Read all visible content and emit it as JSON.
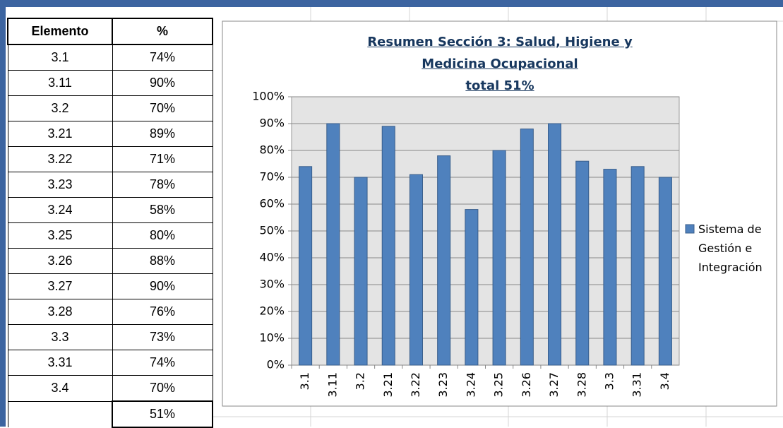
{
  "table": {
    "header": [
      "Elemento",
      "%"
    ],
    "rows": [
      [
        "3.1",
        "74%"
      ],
      [
        "3.11",
        "90%"
      ],
      [
        "3.2",
        "70%"
      ],
      [
        "3.21",
        "89%"
      ],
      [
        "3.22",
        "71%"
      ],
      [
        "3.23",
        "78%"
      ],
      [
        "3.24",
        "58%"
      ],
      [
        "3.25",
        "80%"
      ],
      [
        "3.26",
        "88%"
      ],
      [
        "3.27",
        "90%"
      ],
      [
        "3.28",
        "76%"
      ],
      [
        "3.3",
        "73%"
      ],
      [
        "3.31",
        "74%"
      ],
      [
        "3.4",
        "70%"
      ]
    ],
    "total": "51%"
  },
  "chart_data": {
    "type": "bar",
    "title": "Resumen Sección 3: Salud, Higiene y Medicina Ocupacional",
    "subtitle": "total 51%",
    "categories": [
      "3.1",
      "3.11",
      "3.2",
      "3.21",
      "3.22",
      "3.23",
      "3.24",
      "3.25",
      "3.26",
      "3.27",
      "3.28",
      "3.3",
      "3.31",
      "3.4"
    ],
    "series": [
      {
        "name": "Sistema de Gestión e Integración",
        "color": "#4f81bd",
        "values": [
          74,
          90,
          70,
          89,
          71,
          78,
          58,
          80,
          88,
          90,
          76,
          73,
          74,
          70
        ]
      }
    ],
    "ylim": [
      0,
      100
    ],
    "yticks": [
      {
        "value": 0,
        "label": "0%"
      },
      {
        "value": 10,
        "label": "10%"
      },
      {
        "value": 20,
        "label": "20%"
      },
      {
        "value": 30,
        "label": "30%"
      },
      {
        "value": 40,
        "label": "40%"
      },
      {
        "value": 50,
        "label": "50%"
      },
      {
        "value": 60,
        "label": "60%"
      },
      {
        "value": 70,
        "label": "70%"
      },
      {
        "value": 80,
        "label": "80%"
      },
      {
        "value": 90,
        "label": "90%"
      },
      {
        "value": 100,
        "label": "100%"
      }
    ],
    "grid": true,
    "legend": "right"
  }
}
